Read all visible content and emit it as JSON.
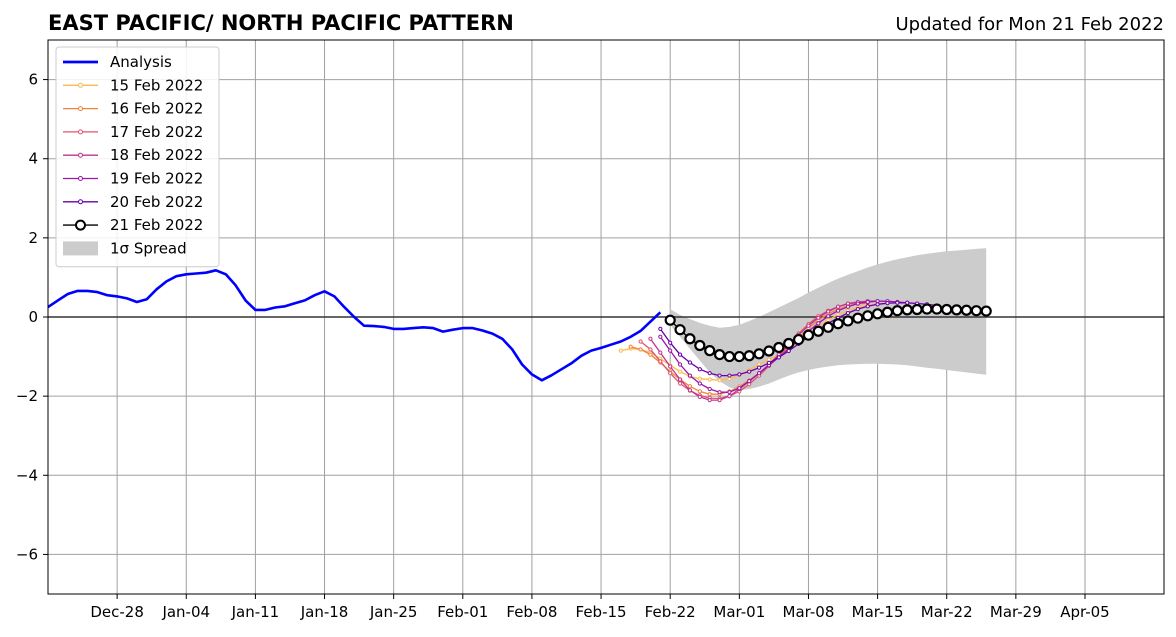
{
  "chart_data": {
    "type": "line",
    "title": "EAST PACIFIC/ NORTH PACIFIC PATTERN",
    "subtitle": "Updated for Mon 21 Feb 2022",
    "xlabel": "",
    "ylabel": "",
    "ylim": [
      -7,
      7
    ],
    "xlim": [
      "2021-12-21",
      "2022-04-13"
    ],
    "yticks": [
      -6,
      -4,
      -2,
      0,
      2,
      4,
      6
    ],
    "ytick_labels": [
      "−6",
      "−4",
      "−2",
      "0",
      "2",
      "4",
      "6"
    ],
    "xticks": [
      "2021-12-28",
      "2022-01-04",
      "2022-01-11",
      "2022-01-18",
      "2022-01-25",
      "2022-02-01",
      "2022-02-08",
      "2022-02-15",
      "2022-02-22",
      "2022-03-01",
      "2022-03-08",
      "2022-03-15",
      "2022-03-22",
      "2022-03-29",
      "2022-04-05"
    ],
    "xtick_labels": [
      "Dec-28",
      "Jan-04",
      "Jan-11",
      "Jan-18",
      "Jan-25",
      "Feb-01",
      "Feb-08",
      "Feb-15",
      "Feb-22",
      "Mar-01",
      "Mar-08",
      "Mar-15",
      "Mar-22",
      "Mar-29",
      "Apr-05"
    ],
    "grid": true,
    "zero_line": true,
    "legend_position": "top-left",
    "legend": [
      {
        "label": "Analysis",
        "color": "#0000ff",
        "marker": "line"
      },
      {
        "label": "15 Feb 2022",
        "color": "#fdb94c",
        "marker": "dot-line"
      },
      {
        "label": "16 Feb 2022",
        "color": "#f0843e",
        "marker": "dot-line"
      },
      {
        "label": "17 Feb 2022",
        "color": "#dd5570",
        "marker": "dot-line"
      },
      {
        "label": "18 Feb 2022",
        "color": "#bf3590",
        "marker": "dot-line"
      },
      {
        "label": "19 Feb 2022",
        "color": "#9a16a8",
        "marker": "dot-line"
      },
      {
        "label": "20 Feb 2022",
        "color": "#6a00a8",
        "marker": "dot-line"
      },
      {
        "label": "21 Feb 2022",
        "color": "#000000",
        "marker": "circle-line"
      },
      {
        "label": "1σ Spread",
        "color": "#cccccc",
        "marker": "patch"
      }
    ],
    "analysis": {
      "name": "Analysis",
      "color": "#0000ff",
      "x": [
        "2021-12-21",
        "2021-12-22",
        "2021-12-23",
        "2021-12-24",
        "2021-12-25",
        "2021-12-26",
        "2021-12-27",
        "2021-12-28",
        "2021-12-29",
        "2021-12-30",
        "2021-12-31",
        "2022-01-01",
        "2022-01-02",
        "2022-01-03",
        "2022-01-04",
        "2022-01-05",
        "2022-01-06",
        "2022-01-07",
        "2022-01-08",
        "2022-01-09",
        "2022-01-10",
        "2022-01-11",
        "2022-01-12",
        "2022-01-13",
        "2022-01-14",
        "2022-01-15",
        "2022-01-16",
        "2022-01-17",
        "2022-01-18",
        "2022-01-19",
        "2022-01-20",
        "2022-01-21",
        "2022-01-22",
        "2022-01-23",
        "2022-01-24",
        "2022-01-25",
        "2022-01-26",
        "2022-01-27",
        "2022-01-28",
        "2022-01-29",
        "2022-01-30",
        "2022-01-31",
        "2022-02-01",
        "2022-02-02",
        "2022-02-03",
        "2022-02-04",
        "2022-02-05",
        "2022-02-06",
        "2022-02-07",
        "2022-02-08",
        "2022-02-09",
        "2022-02-10",
        "2022-02-11",
        "2022-02-12",
        "2022-02-13",
        "2022-02-14",
        "2022-02-15",
        "2022-02-16",
        "2022-02-17",
        "2022-02-18",
        "2022-02-19",
        "2022-02-20",
        "2022-02-21"
      ],
      "y": [
        0.25,
        0.42,
        0.58,
        0.66,
        0.66,
        0.63,
        0.55,
        0.52,
        0.47,
        0.38,
        0.45,
        0.7,
        0.9,
        1.03,
        1.08,
        1.1,
        1.12,
        1.18,
        1.08,
        0.8,
        0.42,
        0.18,
        0.18,
        0.24,
        0.27,
        0.35,
        0.42,
        0.55,
        0.65,
        0.52,
        0.25,
        0.0,
        -0.22,
        -0.23,
        -0.25,
        -0.3,
        -0.3,
        -0.28,
        -0.26,
        -0.28,
        -0.37,
        -0.32,
        -0.28,
        -0.28,
        -0.34,
        -0.42,
        -0.55,
        -0.82,
        -1.2,
        -1.45,
        -1.6,
        -1.47,
        -1.32,
        -1.17,
        -0.98,
        -0.85,
        -0.78,
        -0.7,
        -0.62,
        -0.5,
        -0.35,
        -0.12,
        0.12
      ]
    },
    "forecast_x": [
      "2022-02-22",
      "2022-02-23",
      "2022-02-24",
      "2022-02-25",
      "2022-02-26",
      "2022-02-27",
      "2022-02-28",
      "2022-03-01",
      "2022-03-02",
      "2022-03-03",
      "2022-03-04",
      "2022-03-05",
      "2022-03-06",
      "2022-03-07",
      "2022-03-08",
      "2022-03-09",
      "2022-03-10",
      "2022-03-11",
      "2022-03-12",
      "2022-03-13",
      "2022-03-14",
      "2022-03-15",
      "2022-03-16",
      "2022-03-17",
      "2022-03-18",
      "2022-03-19",
      "2022-03-20",
      "2022-03-21",
      "2022-03-22",
      "2022-03-23",
      "2022-03-24",
      "2022-03-25",
      "2022-03-26"
    ],
    "spread": {
      "name": "1σ Spread",
      "color": "#cccccc",
      "upper": [
        0.2,
        0.05,
        -0.05,
        -0.15,
        -0.22,
        -0.27,
        -0.25,
        -0.2,
        -0.1,
        0.0,
        0.12,
        0.24,
        0.36,
        0.48,
        0.62,
        0.74,
        0.86,
        0.97,
        1.07,
        1.16,
        1.25,
        1.33,
        1.4,
        1.46,
        1.51,
        1.56,
        1.6,
        1.63,
        1.66,
        1.68,
        1.7,
        1.72,
        1.74
      ],
      "lower": [
        -0.2,
        -0.5,
        -0.8,
        -1.1,
        -1.4,
        -1.62,
        -1.78,
        -1.85,
        -1.82,
        -1.76,
        -1.68,
        -1.58,
        -1.48,
        -1.4,
        -1.34,
        -1.29,
        -1.25,
        -1.22,
        -1.2,
        -1.19,
        -1.18,
        -1.18,
        -1.19,
        -1.2,
        -1.22,
        -1.25,
        -1.28,
        -1.31,
        -1.34,
        -1.37,
        -1.4,
        -1.43,
        -1.46
      ]
    },
    "series": [
      {
        "name": "15 Feb 2022",
        "color": "#fdb94c",
        "marker": "small-dot",
        "start": "2022-02-17",
        "values": [
          -0.85,
          -0.8,
          -0.82,
          -0.9,
          -1.05,
          -1.22,
          -1.38,
          -1.5,
          -1.56,
          -1.58,
          -1.6,
          -1.56,
          -1.46,
          -1.34,
          -1.2,
          -1.08,
          -0.95,
          -0.8,
          -0.62,
          -0.44,
          -0.25,
          -0.08,
          0.06,
          0.16,
          0.24,
          0.3,
          0.33,
          0.35
        ]
      },
      {
        "name": "16 Feb 2022",
        "color": "#f0843e",
        "marker": "small-dot",
        "start": "2022-02-18",
        "values": [
          -0.75,
          -0.82,
          -0.95,
          -1.15,
          -1.38,
          -1.58,
          -1.75,
          -1.88,
          -1.95,
          -1.95,
          -1.88,
          -1.76,
          -1.6,
          -1.42,
          -1.22,
          -1.0,
          -0.76,
          -0.52,
          -0.28,
          -0.08,
          0.08,
          0.2,
          0.28,
          0.33,
          0.35
        ]
      },
      {
        "name": "17 Feb 2022",
        "color": "#dd5570",
        "marker": "small-dot",
        "start": "2022-02-19",
        "values": [
          -0.62,
          -0.82,
          -1.12,
          -1.42,
          -1.68,
          -1.86,
          -1.98,
          -2.05,
          -2.06,
          -2.0,
          -1.88,
          -1.7,
          -1.48,
          -1.24,
          -0.98,
          -0.7,
          -0.42,
          -0.18,
          0.02,
          0.16,
          0.26,
          0.33,
          0.36,
          0.37
        ]
      },
      {
        "name": "18 Feb 2022",
        "color": "#bf3590",
        "marker": "small-dot",
        "start": "2022-02-20",
        "values": [
          -0.55,
          -0.9,
          -1.25,
          -1.58,
          -1.85,
          -2.02,
          -2.1,
          -2.1,
          -2.0,
          -1.82,
          -1.62,
          -1.42,
          -1.2,
          -0.95,
          -0.7,
          -0.45,
          -0.22,
          -0.02,
          0.14,
          0.26,
          0.34,
          0.38,
          0.4,
          0.4
        ]
      },
      {
        "name": "19 Feb 2022",
        "color": "#9a16a8",
        "marker": "small-dot",
        "start": "2022-02-21",
        "values": [
          -0.5,
          -0.85,
          -1.2,
          -1.48,
          -1.68,
          -1.82,
          -1.9,
          -1.9,
          -1.8,
          -1.62,
          -1.42,
          -1.22,
          -1.02,
          -0.8,
          -0.58,
          -0.36,
          -0.16,
          0.02,
          0.16,
          0.26,
          0.34,
          0.38,
          0.4,
          0.4,
          0.38,
          0.36
        ]
      },
      {
        "name": "20 Feb 2022",
        "color": "#6a00a8",
        "marker": "small-dot",
        "start": "2022-02-21",
        "values": [
          -0.3,
          -0.65,
          -0.95,
          -1.15,
          -1.32,
          -1.42,
          -1.48,
          -1.48,
          -1.45,
          -1.38,
          -1.28,
          -1.16,
          -1.02,
          -0.86,
          -0.68,
          -0.5,
          -0.32,
          -0.16,
          -0.02,
          0.1,
          0.2,
          0.27,
          0.32,
          0.35,
          0.36,
          0.36,
          0.34,
          0.32,
          0.29
        ]
      },
      {
        "name": "21 Feb 2022",
        "color": "#000000",
        "marker": "open-circle",
        "start": "2022-02-22",
        "values": [
          -0.08,
          -0.32,
          -0.55,
          -0.72,
          -0.85,
          -0.95,
          -1.0,
          -1.0,
          -0.98,
          -0.93,
          -0.86,
          -0.77,
          -0.67,
          -0.57,
          -0.46,
          -0.36,
          -0.26,
          -0.17,
          -0.1,
          -0.03,
          0.03,
          0.08,
          0.12,
          0.16,
          0.18,
          0.19,
          0.2,
          0.2,
          0.19,
          0.18,
          0.17,
          0.16,
          0.15
        ]
      }
    ]
  }
}
